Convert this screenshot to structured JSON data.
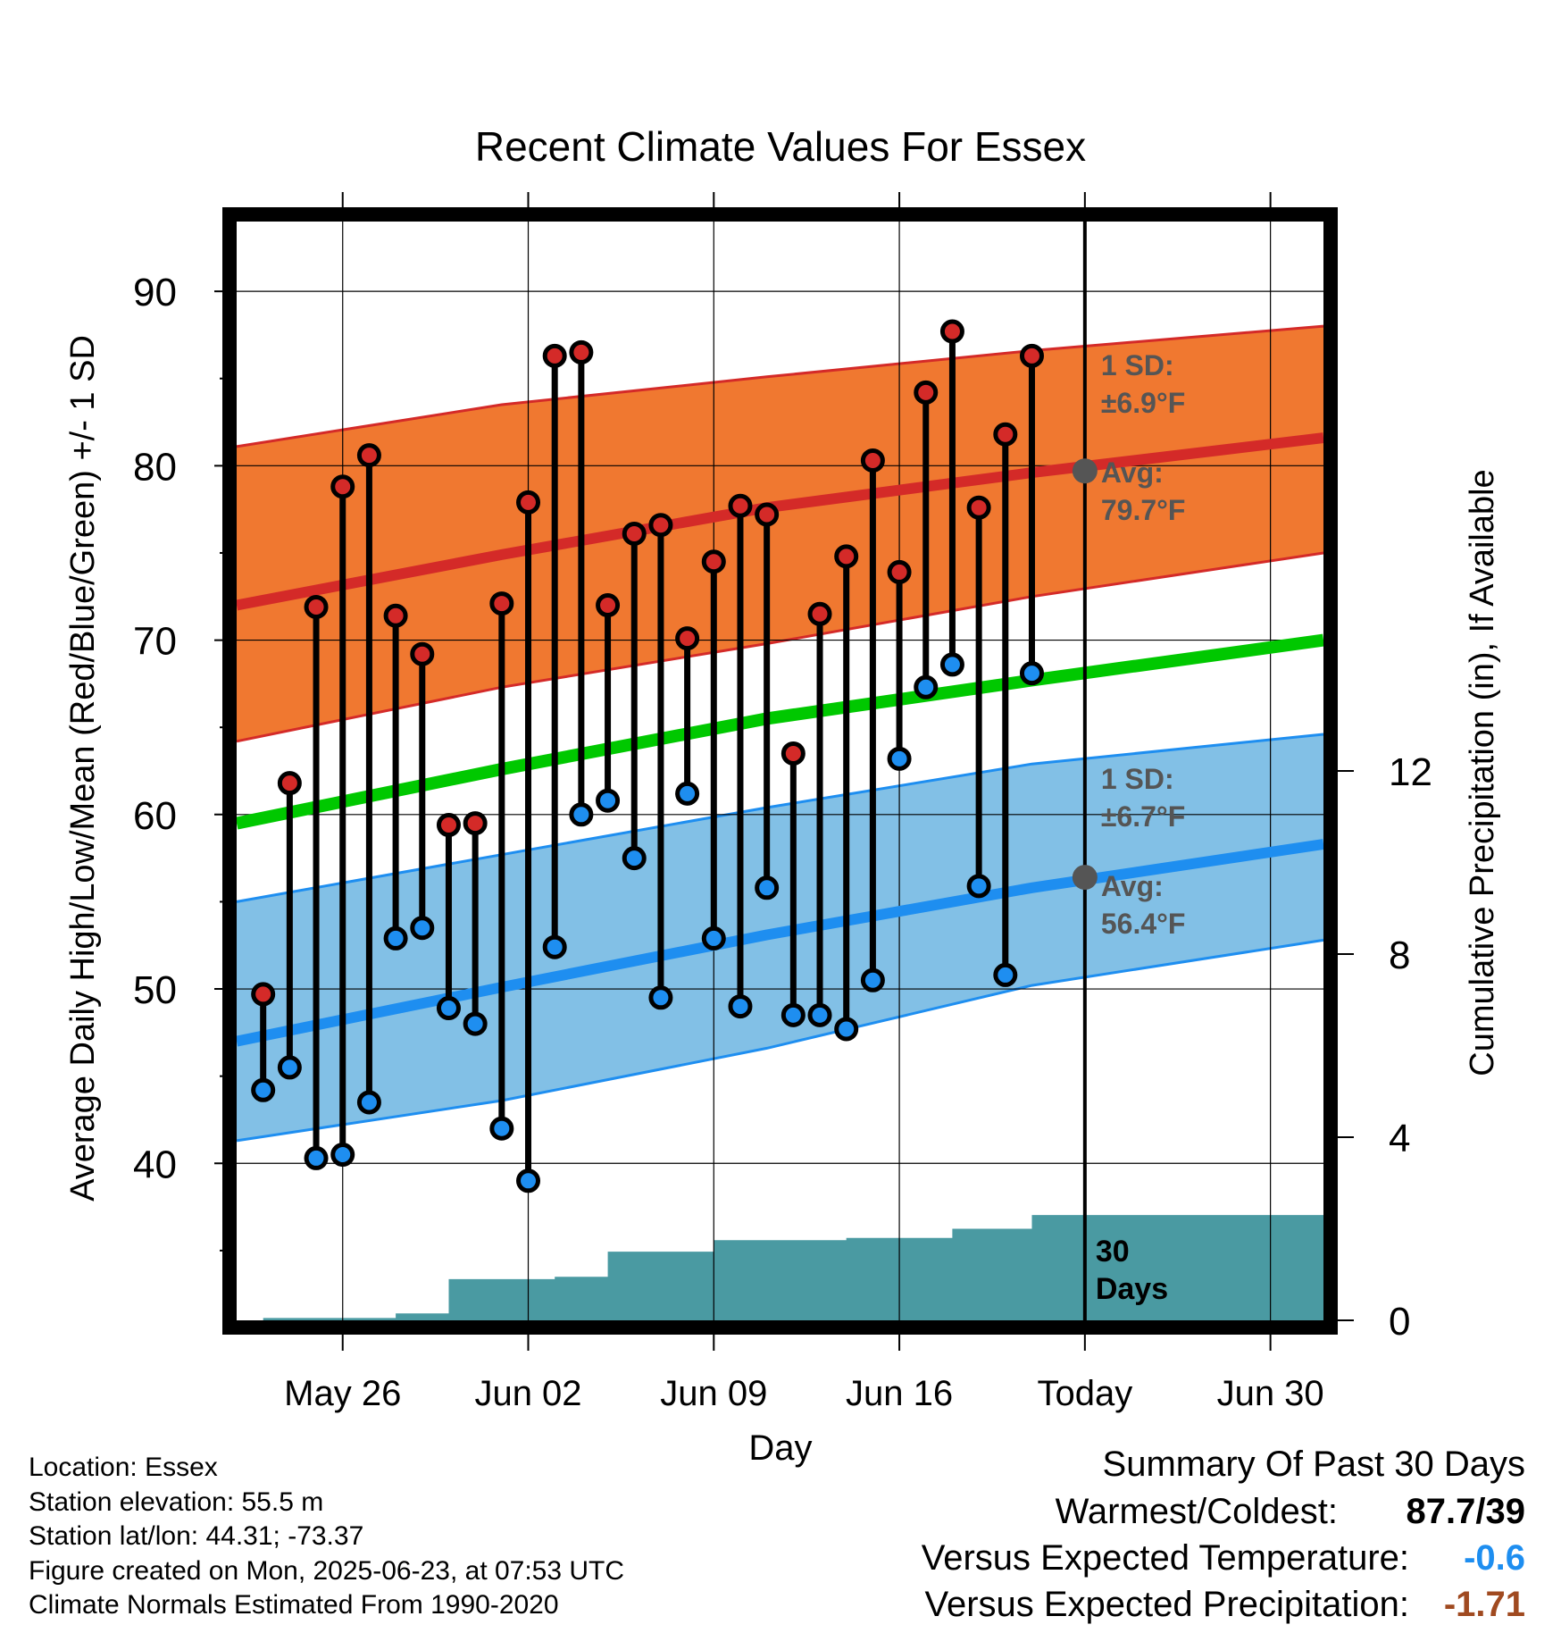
{
  "colors": {
    "high_band": "#f07830",
    "high_edge": "#d42a28",
    "low_band": "#82c0e6",
    "low_edge": "#1e8ef0",
    "mean_line": "#00c800",
    "precip": "#4a9aa2",
    "high_marker": "#d42a28",
    "low_marker": "#1e8ef0",
    "avg_dot": "#555555",
    "annot_text": "#555555",
    "temp_anomaly": "#1e8ef0",
    "precip_anomaly": "#a04a20"
  },
  "chart_data": {
    "type": "line",
    "title": "Recent Climate Values For Essex",
    "xlabel": "Day",
    "ylabel": "Average Daily High/Low/Mean (Red/Blue/Green) +/- 1 SD",
    "y2label": "Cumulative Precipitation (in), If Available",
    "x_ticks": [
      {
        "day": 4,
        "label": "May 26"
      },
      {
        "day": 11,
        "label": "Jun 02"
      },
      {
        "day": 18,
        "label": "Jun 09"
      },
      {
        "day": 25,
        "label": "Jun 16"
      },
      {
        "day": 32,
        "label": "Today"
      },
      {
        "day": 39,
        "label": "Jun 30"
      }
    ],
    "y_ticks": [
      40,
      50,
      60,
      70,
      80,
      90
    ],
    "y2_ticks": [
      0,
      4,
      8,
      12
    ],
    "ylim": [
      31,
      94
    ],
    "y2lim": [
      0,
      24
    ],
    "xlim": [
      0,
      41
    ],
    "today_day": 32,
    "normals": {
      "days": [
        0,
        10,
        20,
        30,
        41
      ],
      "high_mean": [
        72.0,
        74.9,
        77.6,
        79.6,
        81.6
      ],
      "high_upper": [
        81.1,
        83.5,
        85.1,
        86.6,
        88.0
      ],
      "high_lower": [
        64.2,
        67.3,
        69.8,
        72.5,
        75.0
      ],
      "low_mean": [
        47.0,
        50.1,
        53.1,
        55.8,
        58.3
      ],
      "low_upper": [
        55.0,
        57.7,
        60.4,
        62.9,
        64.6
      ],
      "low_lower": [
        41.3,
        43.6,
        46.6,
        50.2,
        52.8
      ],
      "daily_mean": [
        59.5,
        62.6,
        65.5,
        67.7,
        70.0
      ]
    },
    "observations": {
      "days": [
        1,
        2,
        3,
        4,
        5,
        6,
        7,
        8,
        9,
        10,
        11,
        12,
        13,
        14,
        15,
        16,
        17,
        18,
        19,
        20,
        21,
        22,
        23,
        24,
        25,
        26,
        27,
        28,
        29,
        30,
        31
      ],
      "high": [
        49.7,
        61.8,
        71.9,
        78.8,
        80.6,
        71.4,
        69.2,
        59.4,
        59.5,
        72.1,
        77.9,
        86.3,
        86.5,
        72.0,
        76.1,
        76.6,
        70.1,
        74.5,
        77.7,
        77.2,
        63.5,
        71.5,
        74.8,
        80.3,
        73.9,
        84.2,
        87.7,
        77.6,
        81.8,
        86.3,
        null
      ],
      "low": [
        44.2,
        45.5,
        40.3,
        40.5,
        43.5,
        52.9,
        53.5,
        48.9,
        48.0,
        42.0,
        39.0,
        52.4,
        60.0,
        60.8,
        57.5,
        49.5,
        61.2,
        52.9,
        49.0,
        55.8,
        48.5,
        48.5,
        47.7,
        50.5,
        63.2,
        67.3,
        68.6,
        55.9,
        50.8,
        68.1,
        null
      ]
    },
    "precipitation": {
      "days": [
        0,
        1,
        5,
        6,
        7,
        8,
        12,
        13,
        14,
        17,
        18,
        22,
        23,
        26,
        27,
        28,
        29,
        30,
        31,
        41
      ],
      "cumulative": [
        0.0,
        0.05,
        0.05,
        0.15,
        0.15,
        0.9,
        0.95,
        0.95,
        1.5,
        1.5,
        1.75,
        1.75,
        1.8,
        1.8,
        2.0,
        2.0,
        2.0,
        2.3,
        2.3,
        2.3
      ]
    },
    "grid": true,
    "annotations": {
      "high_sd_label": "1 SD:",
      "high_sd_value": "±6.9°F",
      "high_avg_label": "Avg:",
      "high_avg_value": "79.7°F",
      "high_avg_temp": 79.7,
      "low_sd_label": "1 SD:",
      "low_sd_value": "±6.7°F",
      "low_avg_label": "Avg:",
      "low_avg_value": "56.4°F",
      "low_avg_temp": 56.4,
      "days_count": "30",
      "days_word": "Days"
    }
  },
  "station_info": {
    "location": "Location: Essex",
    "elevation": "Station elevation: 55.5 m",
    "latlon": "Station lat/lon: 44.31; -73.37",
    "created": "Figure created on Mon, 2025-06-23, at 07:53 UTC",
    "normals": "Climate Normals Estimated From 1990-2020"
  },
  "summary": {
    "title": "Summary Of Past 30 Days",
    "warmest_label": "Warmest/Coldest:",
    "warmest_value": "87.7/39",
    "temp_label": "Versus Expected Temperature:",
    "temp_value": "-0.6",
    "precip_label": "Versus Expected Precipitation:",
    "precip_value": "-1.71"
  }
}
